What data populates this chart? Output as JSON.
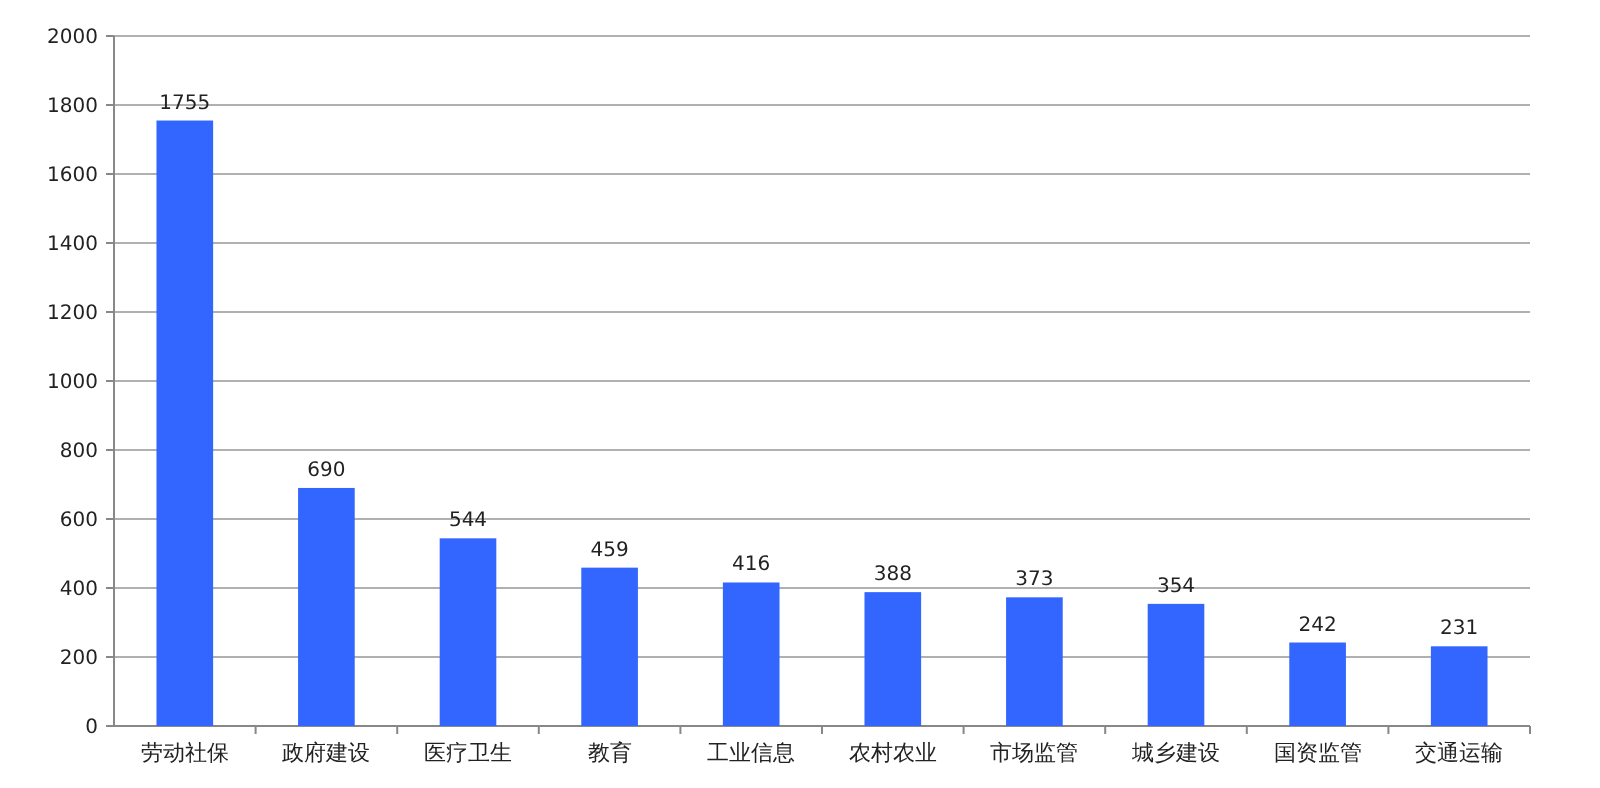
{
  "chart_data": {
    "type": "bar",
    "categories": [
      "劳动社保",
      "政府建设",
      "医疗卫生",
      "教育",
      "工业信息",
      "农村农业",
      "市场监管",
      "城乡建设",
      "国资监管",
      "交通运输"
    ],
    "values": [
      1755,
      690,
      544,
      459,
      416,
      388,
      373,
      354,
      242,
      231
    ],
    "color": "#3366ff",
    "ylim": [
      0,
      2000
    ],
    "yticks": [
      0,
      200,
      400,
      600,
      800,
      1000,
      1200,
      1400,
      1600,
      1800,
      2000
    ],
    "grid": "y",
    "data_labels": true
  }
}
